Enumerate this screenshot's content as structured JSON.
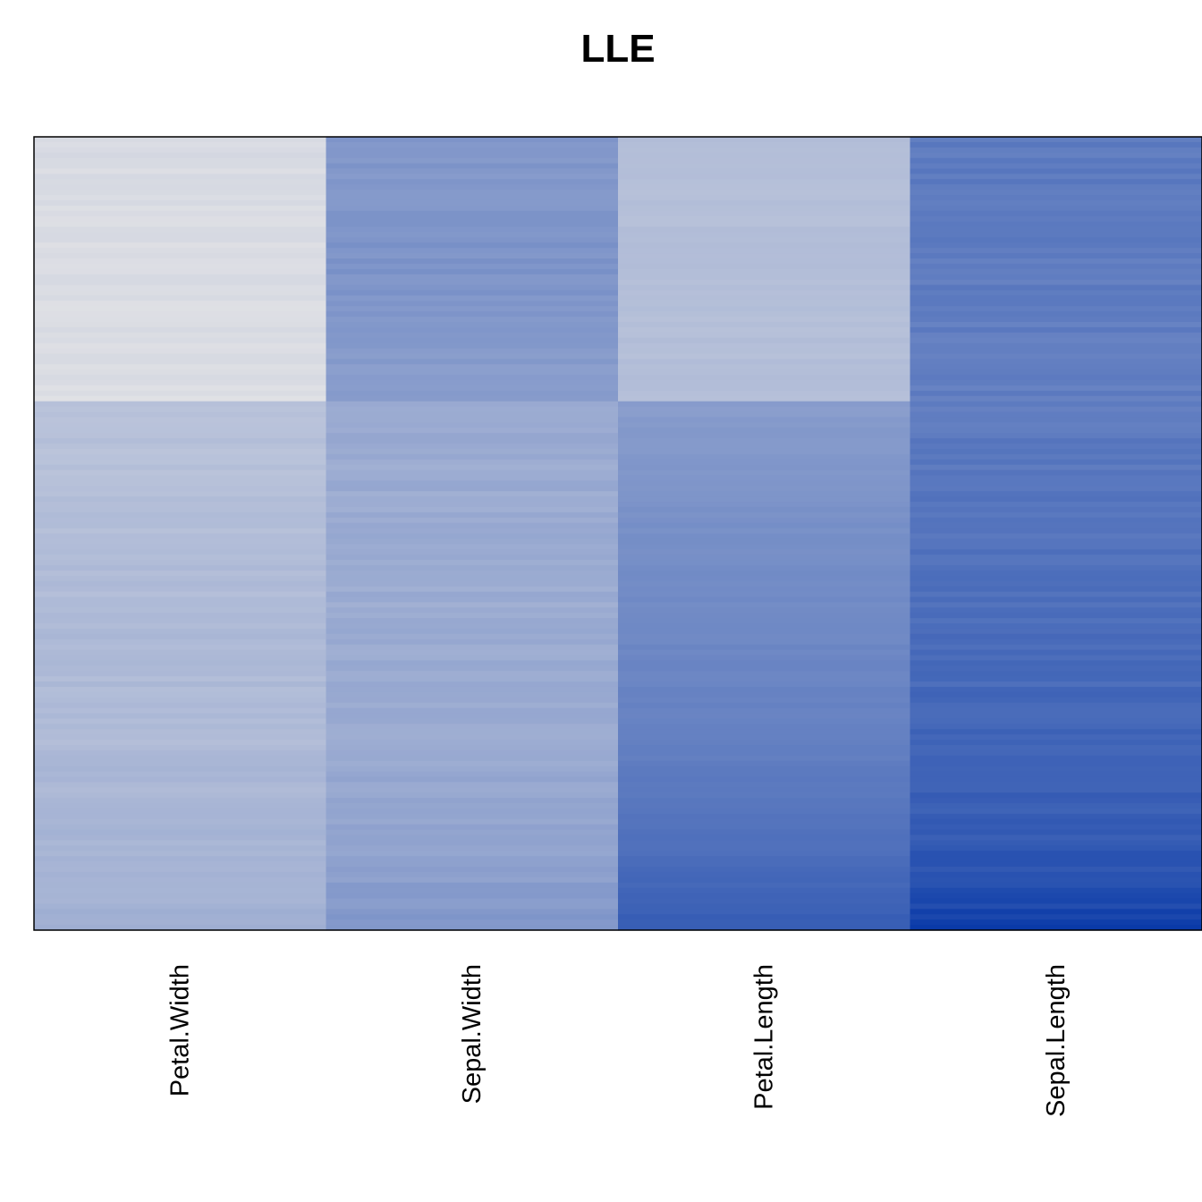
{
  "chart_data": {
    "type": "heatmap",
    "title": "LLE",
    "xlabel": "",
    "ylabel": "",
    "columns": [
      "Petal.Width",
      "Sepal.Width",
      "Petal.Length",
      "Sepal.Length"
    ],
    "n_rows": 150,
    "color_scale": {
      "low": "#e4e4e6",
      "high": "#0a3aa8"
    },
    "value_range": [
      0,
      1
    ],
    "grid": false,
    "legend": "none",
    "profiles": {
      "Petal.Width": [
        [
          0,
          0.05
        ],
        [
          0.33,
          0.04
        ],
        [
          0.335,
          0.2
        ],
        [
          0.5,
          0.23
        ],
        [
          0.65,
          0.25
        ],
        [
          0.75,
          0.24
        ],
        [
          0.8,
          0.26
        ],
        [
          1,
          0.3
        ]
      ],
      "Sepal.Width": [
        [
          0,
          0.45
        ],
        [
          0.15,
          0.47
        ],
        [
          0.33,
          0.42
        ],
        [
          0.335,
          0.34
        ],
        [
          0.55,
          0.33
        ],
        [
          0.75,
          0.34
        ],
        [
          0.9,
          0.38
        ],
        [
          1,
          0.45
        ]
      ],
      "Petal.Length": [
        [
          0,
          0.22
        ],
        [
          0.33,
          0.22
        ],
        [
          0.335,
          0.42
        ],
        [
          0.5,
          0.5
        ],
        [
          0.75,
          0.58
        ],
        [
          0.9,
          0.68
        ],
        [
          1,
          0.8
        ]
      ],
      "Sepal.Length": [
        [
          0,
          0.62
        ],
        [
          0.3,
          0.6
        ],
        [
          0.5,
          0.66
        ],
        [
          0.7,
          0.72
        ],
        [
          0.85,
          0.78
        ],
        [
          0.95,
          0.86
        ],
        [
          1,
          0.98
        ]
      ]
    },
    "noise": [
      0.05,
      0.06,
      0.03,
      0.07
    ]
  }
}
